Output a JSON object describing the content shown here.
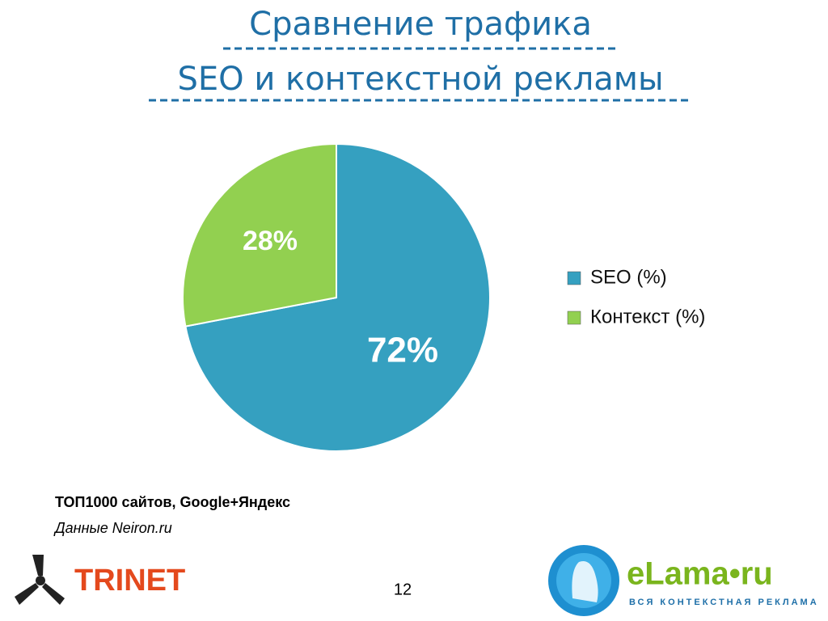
{
  "chart_data": {
    "type": "pie",
    "title": "Сравнение трафика",
    "subtitle": "SEO и контекстной рекламы",
    "categories": [
      "SEO (%)",
      "Контекст (%)"
    ],
    "values": [
      72,
      28
    ],
    "value_labels": [
      "72%",
      "28%"
    ],
    "colors": [
      "#35a0c0",
      "#92d050"
    ],
    "legend": "right"
  },
  "notes": {
    "line1": "ТОП1000 сайтов, Google+Яндекс",
    "line2": "Данные Neiron.ru"
  },
  "footer": {
    "page_number": 12,
    "logo_left": "TRINET",
    "logo_right": "eLama•ru",
    "logo_right_tagline": "ВСЯ КОНТЕКСТНАЯ РЕКЛАМА"
  }
}
